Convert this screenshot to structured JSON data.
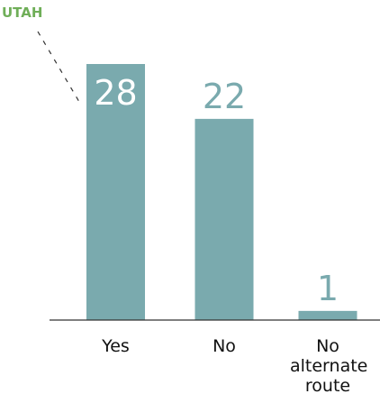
{
  "chart_data": {
    "type": "bar",
    "title": "UTAH",
    "categories": [
      "Yes",
      "No",
      "No alternate route"
    ],
    "values": [
      28,
      22,
      1
    ],
    "color": "#7aaaae",
    "title_color": "#6fae58"
  }
}
